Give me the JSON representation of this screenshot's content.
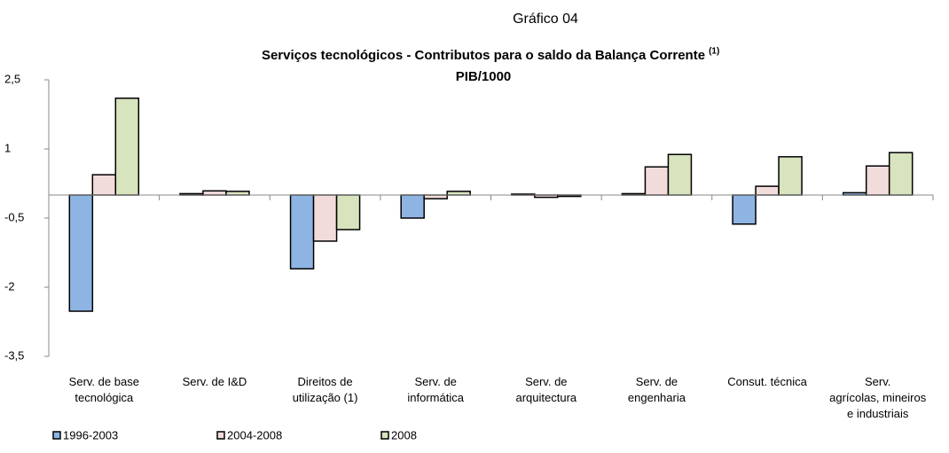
{
  "chart_data": {
    "type": "bar",
    "chart_label": "Gráfico 04",
    "title": "Serviços tecnológicos - Contributos para o saldo da Balança Corrente",
    "title_note": "(1)",
    "subtitle": "PIB/1000",
    "categories": [
      "Serv. de base\ntecnológica",
      "Serv. de I&D",
      "Direitos de\nutilização (1)",
      "Serv. de\ninformática",
      "Serv. de\narquitectura",
      "Serv. de\nengenharia",
      "Consut. técnica",
      "Serv.\nagrícolas, mineiros\ne industriais"
    ],
    "series": [
      {
        "name": "1996-2003",
        "color": "#8eb4e3",
        "values": [
          -2.52,
          0.03,
          -1.6,
          -0.5,
          0.02,
          0.03,
          -0.63,
          0.05
        ]
      },
      {
        "name": "2004-2008",
        "color": "#f2dcdb",
        "values": [
          0.44,
          0.09,
          -1.0,
          -0.08,
          -0.05,
          0.61,
          0.19,
          0.63
        ]
      },
      {
        "name": "2008",
        "color": "#d7e4bd",
        "values": [
          2.1,
          0.08,
          -0.75,
          0.08,
          -0.03,
          0.88,
          0.83,
          0.92
        ]
      }
    ],
    "ylim": [
      -3.5,
      2.5
    ],
    "yticks": [
      {
        "value": -3.5,
        "label": "-3,5"
      },
      -2,
      {
        "value": -0.5,
        "label": "-0,5"
      },
      1,
      {
        "value": 2.5,
        "label": "2,5"
      }
    ],
    "legend": "bottom-left"
  }
}
